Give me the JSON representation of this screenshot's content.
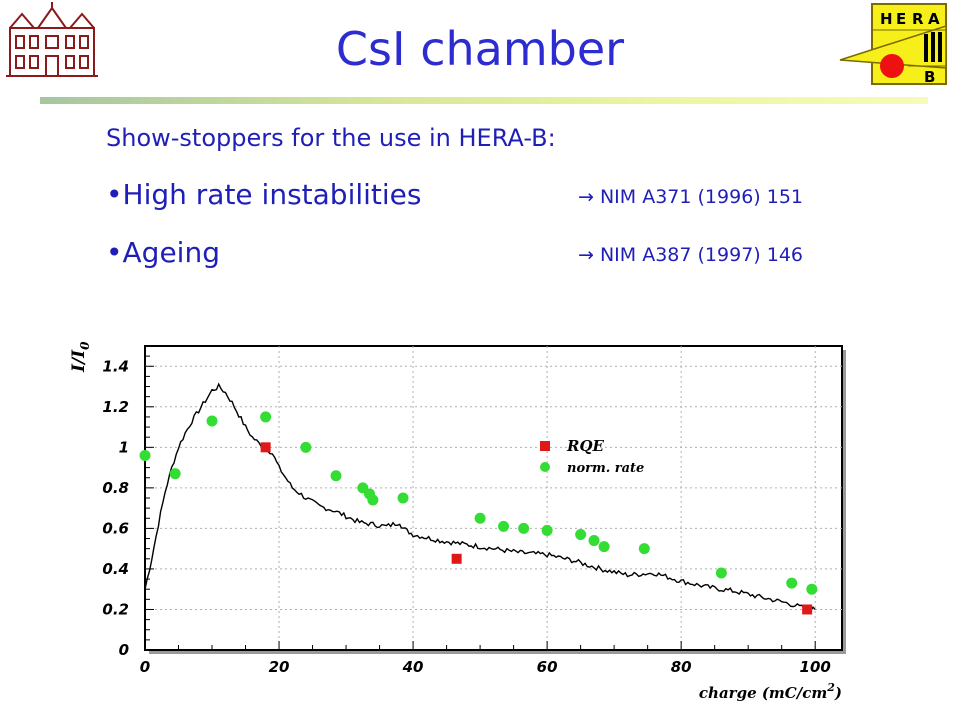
{
  "slide": {
    "title": "CsI chamber",
    "subtitle": "Show-stoppers for the use in HERA-B:",
    "bullets": [
      {
        "text": "•High rate instabilities",
        "ref": "→ NIM A371 (1996) 151"
      },
      {
        "text": "•Ageing",
        "ref": "→ NIM A387 (1997) 146"
      }
    ],
    "logo_right": {
      "letters": [
        "H",
        "E",
        "R",
        "A",
        "B"
      ]
    },
    "colors": {
      "title": "#2c2cd0",
      "text": "#1f1fb8"
    }
  },
  "chart_data": {
    "type": "scatter",
    "xlabel": "charge (mC/cm",
    "xlabel_sup": "2",
    "xlabel_close": ")",
    "ylabel": "I/I",
    "ylabel_sub": "0",
    "xlim": [
      0,
      104
    ],
    "ylim": [
      0,
      1.5
    ],
    "x_ticks": [
      0,
      20,
      40,
      60,
      80,
      100
    ],
    "y_ticks": [
      0,
      0.2,
      0.4,
      0.6,
      0.8,
      1,
      1.2,
      1.4
    ],
    "y_tick_labels": [
      "0",
      "0.2",
      "0.4",
      "0.6",
      "0.8",
      "1",
      "1.2",
      "1.4"
    ],
    "grid": true,
    "legend_position": "upper-right",
    "series": [
      {
        "name": "RQE",
        "marker": "square",
        "color": "#e01818",
        "x": [
          18,
          46.5,
          98.8
        ],
        "y": [
          1.0,
          0.45,
          0.2
        ]
      },
      {
        "name": "norm. rate",
        "marker": "circle",
        "color": "#33dd33",
        "x": [
          0,
          4.5,
          10,
          18,
          24,
          28.5,
          32.5,
          33.5,
          34,
          38.5,
          50,
          53.5,
          56.5,
          60,
          65,
          67,
          68.5,
          74.5,
          86,
          96.5,
          99.5
        ],
        "y": [
          0.96,
          0.87,
          1.13,
          1.15,
          1.0,
          0.86,
          0.8,
          0.77,
          0.74,
          0.75,
          0.65,
          0.61,
          0.6,
          0.59,
          0.57,
          0.54,
          0.51,
          0.5,
          0.38,
          0.33,
          0.3
        ]
      },
      {
        "name": "",
        "marker": "line",
        "color": "#000000",
        "x": [
          0,
          1,
          2,
          3,
          4,
          5,
          6,
          7,
          8,
          9,
          10,
          11,
          12,
          13,
          14,
          15,
          16,
          17,
          18,
          19,
          20,
          21,
          22,
          24,
          26,
          28,
          30,
          32,
          34,
          36,
          38,
          38.5,
          40,
          44,
          48,
          52,
          56,
          60,
          64,
          68,
          72,
          76,
          80,
          84,
          88,
          92,
          96,
          98,
          100
        ],
        "y": [
          0.3,
          0.45,
          0.62,
          0.78,
          0.9,
          1.0,
          1.07,
          1.13,
          1.18,
          1.23,
          1.28,
          1.3,
          1.27,
          1.22,
          1.16,
          1.1,
          1.05,
          1.02,
          1.0,
          0.97,
          0.9,
          0.85,
          0.8,
          0.75,
          0.71,
          0.69,
          0.66,
          0.63,
          0.62,
          0.61,
          0.63,
          0.6,
          0.57,
          0.54,
          0.52,
          0.5,
          0.48,
          0.47,
          0.44,
          0.4,
          0.37,
          0.38,
          0.34,
          0.31,
          0.29,
          0.26,
          0.23,
          0.21,
          0.2
        ]
      }
    ]
  }
}
